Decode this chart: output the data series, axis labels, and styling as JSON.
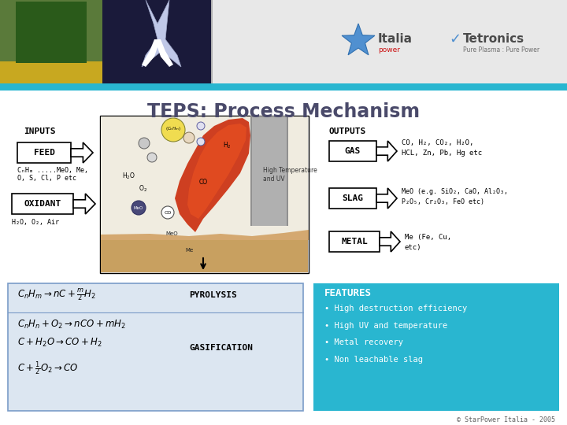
{
  "title": "TEPS: Process Mechanism",
  "title_color": "#4a4a6a",
  "bg_color": "#ffffff",
  "cyan_bar_color": "#29b6d0",
  "inputs_label": "INPUTS",
  "outputs_label": "OUTPUTS",
  "feed_label": "FEED",
  "feed_sub": "CₙHₘ .....MeO, Me,\nO, S, Cl, P etc",
  "oxidant_label": "OXIDANT",
  "oxidant_sub": "H₂O, O₂, Air",
  "gas_label": "GAS",
  "gas_desc": "CO, H₂, CO₂, H₂O,\nHCL, Zn, Pb, Hg etc",
  "slag_label": "SLAG",
  "slag_desc": "MeO (e.g. SiO₂, CaO, Al₂O₃,\nP₂O₅, Cr₂O₃, FeO etc)",
  "metal_label": "METAL",
  "metal_desc": "Me (Fe, Cu,\netc)",
  "features_title": "FEATURES",
  "features": [
    "High destruction efficiency",
    "High UV and temperature",
    "Metal recovery",
    "Non leachable slag"
  ],
  "features_bg": "#29b6d0",
  "pyrolysis_label": "PYROLYSIS",
  "gasif_label": "GASIFICATION",
  "footer": "© StarPower Italia - 2005",
  "box_eq_bg": "#dce6f1",
  "box_eq_border": "#7a9cc8",
  "header_left_color": "#3a5a2a",
  "header_right_color": "#1a1a3a",
  "header_mid_color": "#e8e8e8"
}
